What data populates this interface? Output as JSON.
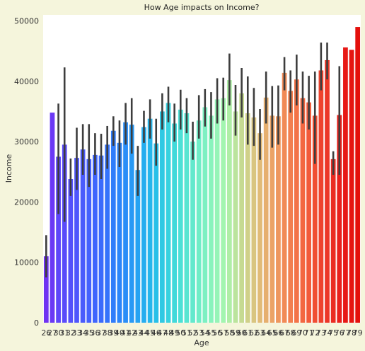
{
  "chart_data": {
    "type": "bar",
    "title": "How Age impacts on Income?",
    "xlabel": "Age",
    "ylabel": "Income",
    "ylim": [
      0,
      51000
    ],
    "yticks": [
      0,
      10000,
      20000,
      30000,
      40000,
      50000
    ],
    "grid": false,
    "error_bars": true,
    "categories": [
      "26",
      "27",
      "30",
      "31",
      "32",
      "33",
      "34",
      "35",
      "36",
      "37",
      "38",
      "39",
      "40",
      "41",
      "42",
      "43",
      "44",
      "45",
      "46",
      "47",
      "48",
      "49",
      "50",
      "51",
      "52",
      "53",
      "54",
      "55",
      "56",
      "57",
      "58",
      "59",
      "60",
      "61",
      "62",
      "63",
      "64",
      "65",
      "66",
      "67",
      "68",
      "69",
      "70",
      "71",
      "72",
      "73",
      "74",
      "75",
      "76",
      "77",
      "78",
      "79"
    ],
    "values": [
      11000,
      34800,
      27500,
      29500,
      23800,
      27300,
      28700,
      27100,
      27800,
      27700,
      29500,
      31800,
      29800,
      33200,
      32800,
      25300,
      32400,
      33800,
      29700,
      35000,
      36400,
      33000,
      35300,
      34700,
      30000,
      33500,
      35700,
      34300,
      37000,
      37200,
      40200,
      35000,
      38000,
      34700,
      34000,
      31400,
      37300,
      34300,
      34200,
      41400,
      38400,
      40300,
      37200,
      36500,
      34300,
      41800,
      43500,
      27100,
      34400,
      45600,
      45200,
      49000
    ],
    "err_low": [
      7500,
      null,
      18000,
      16700,
      21000,
      22000,
      24500,
      22500,
      24500,
      23800,
      25500,
      29300,
      25800,
      29500,
      28000,
      21000,
      29800,
      30500,
      26000,
      32000,
      33200,
      30000,
      32000,
      31400,
      27000,
      30500,
      32500,
      30500,
      33000,
      33500,
      36000,
      31000,
      34000,
      29500,
      29300,
      27000,
      33000,
      29000,
      29500,
      38500,
      34800,
      36000,
      33000,
      32000,
      26300,
      38500,
      40300,
      24500,
      24500,
      null,
      null,
      null
    ],
    "err_high": [
      14500,
      null,
      36300,
      42300,
      27200,
      32300,
      32900,
      32900,
      31400,
      31300,
      32600,
      34200,
      33500,
      36400,
      37200,
      29300,
      35100,
      37000,
      33800,
      38000,
      39100,
      36300,
      38600,
      37200,
      33300,
      37700,
      38700,
      38200,
      40500,
      40600,
      44600,
      39400,
      42200,
      40800,
      38900,
      35400,
      41600,
      39200,
      39300,
      44000,
      41800,
      44400,
      41600,
      40900,
      41600,
      46400,
      46400,
      28400,
      42500,
      null,
      null,
      null
    ],
    "colors": [
      "#7032f2",
      "#6b38f5",
      "#5e46f9",
      "#5a4bfa",
      "#5451fb",
      "#4f56fc",
      "#4a5bfc",
      "#4461fd",
      "#3f66fd",
      "#3a6bfc",
      "#3473fb",
      "#2f7dfa",
      "#2b85f9",
      "#2a8ef7",
      "#2899f5",
      "#25a3f2",
      "#25adef",
      "#25b6ec",
      "#28c0e8",
      "#2fc9e3",
      "#37d2df",
      "#41d9da",
      "#4ce0d6",
      "#58e5d1",
      "#63e9cd",
      "#70edc7",
      "#7df0c2",
      "#89f3bc",
      "#96f4b7",
      "#a3f5b0",
      "#afeea6",
      "#bbe49d",
      "#c6da92",
      "#d0d089",
      "#d9c580",
      "#e1bb77",
      "#e6af6e",
      "#eba366",
      "#ee975e",
      "#f18a56",
      "#f27f4f",
      "#f37347",
      "#f36741",
      "#f25a3a",
      "#f04e33",
      "#ee432d",
      "#ec3727",
      "#ea2c22",
      "#e8201c",
      "#e71916",
      "#e51511",
      "#e4100c"
    ]
  }
}
